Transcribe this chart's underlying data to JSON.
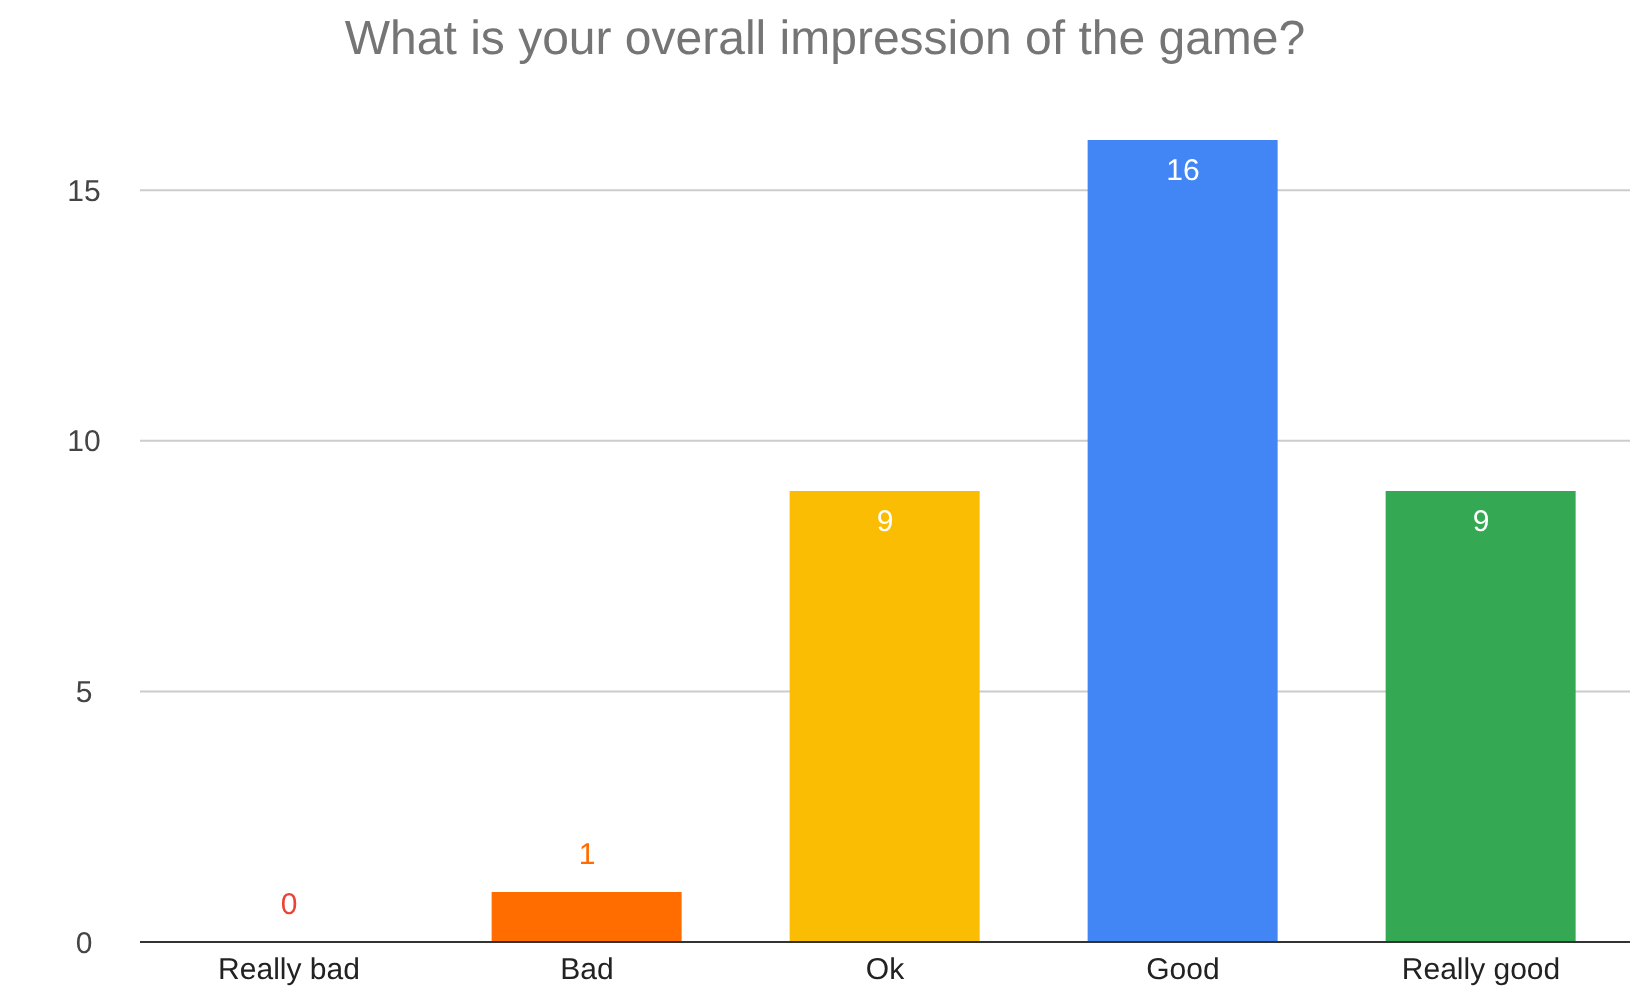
{
  "chart_data": {
    "type": "bar",
    "title": "What is your overall impression of the game?",
    "categories": [
      "Really bad",
      "Bad",
      "Ok",
      "Good",
      "Really good"
    ],
    "values": [
      0,
      1,
      9,
      16,
      9
    ],
    "colors": [
      "#ea4335",
      "#ff6d01",
      "#fbbc04",
      "#4285f4",
      "#34a853"
    ],
    "ylim": [
      0,
      16
    ],
    "yticks": [
      0,
      5,
      10,
      15
    ],
    "grid": "y",
    "data_labels": true,
    "legend": false
  }
}
